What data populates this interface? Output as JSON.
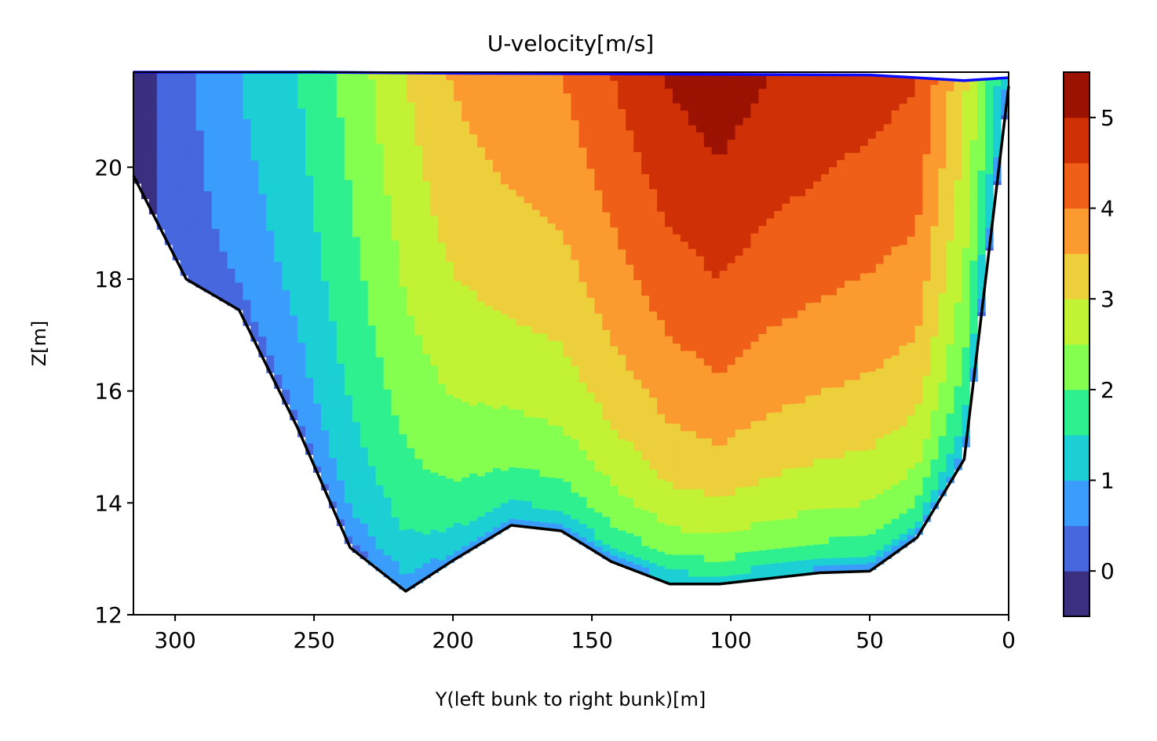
{
  "chart_data": {
    "type": "contour",
    "title": "U-velocity[m/s]",
    "xlabel": "Y(left bunk to right bunk)[m]",
    "ylabel": "Z[m]",
    "xlim": [
      315,
      0
    ],
    "ylim": [
      12,
      21.7
    ],
    "x_ticks": [
      300,
      250,
      200,
      150,
      100,
      50,
      0
    ],
    "x_tick_labels": [
      "300",
      "250",
      "200",
      "150",
      "100",
      "50",
      "0"
    ],
    "y_ticks": [
      12,
      14,
      16,
      18,
      20
    ],
    "y_tick_labels": [
      "12",
      "14",
      "16",
      "18",
      "20"
    ],
    "colorbar": {
      "vmin": -0.5,
      "vmax": 5.5,
      "levels": [
        -0.5,
        0.0,
        0.5,
        1.0,
        1.5,
        2.0,
        2.5,
        3.0,
        3.5,
        4.0,
        4.5,
        5.0,
        5.5
      ],
      "colors": [
        "#3b2f80",
        "#4767de",
        "#3a9cfb",
        "#1bcfd4",
        "#2ff08f",
        "#84fe4f",
        "#c1f334",
        "#eccf3a",
        "#fb9b2f",
        "#f05f17",
        "#cf3005",
        "#9b1102"
      ],
      "ticks": [
        0,
        1,
        2,
        3,
        4,
        5
      ],
      "tick_labels": [
        "0",
        "1",
        "2",
        "3",
        "4",
        "5"
      ]
    },
    "bed_profile": {
      "y": [
        315,
        296,
        277,
        256,
        237,
        217,
        200,
        179,
        161,
        143,
        122,
        104,
        86,
        68,
        50,
        33,
        16,
        0
      ],
      "z": [
        19.85,
        18.0,
        17.45,
        15.35,
        13.2,
        12.42,
        12.97,
        13.6,
        13.5,
        12.95,
        12.55,
        12.55,
        12.65,
        12.75,
        12.78,
        13.38,
        14.78,
        21.45
      ]
    },
    "water_surface": {
      "y": [
        315,
        250,
        200,
        150,
        100,
        50,
        16,
        0
      ],
      "z": [
        21.7,
        21.7,
        21.68,
        21.67,
        21.66,
        21.65,
        21.55,
        21.6
      ]
    },
    "velocity_grid": {
      "y": [
        315,
        296,
        277,
        256,
        237,
        217,
        200,
        179,
        161,
        143,
        122,
        104,
        86,
        68,
        50,
        33,
        16,
        8,
        0
      ],
      "depth_fraction": [
        0.0,
        0.1,
        0.2,
        0.3,
        0.4,
        0.5,
        0.6,
        0.7,
        0.8,
        0.9,
        1.0
      ],
      "u_surface": [
        -0.3,
        0.4,
        1.0,
        1.5,
        2.2,
        3.0,
        3.55,
        3.85,
        4.0,
        4.5,
        5.05,
        5.3,
        5.0,
        4.85,
        4.7,
        4.55,
        3.1,
        2.1,
        0.9
      ]
    }
  }
}
